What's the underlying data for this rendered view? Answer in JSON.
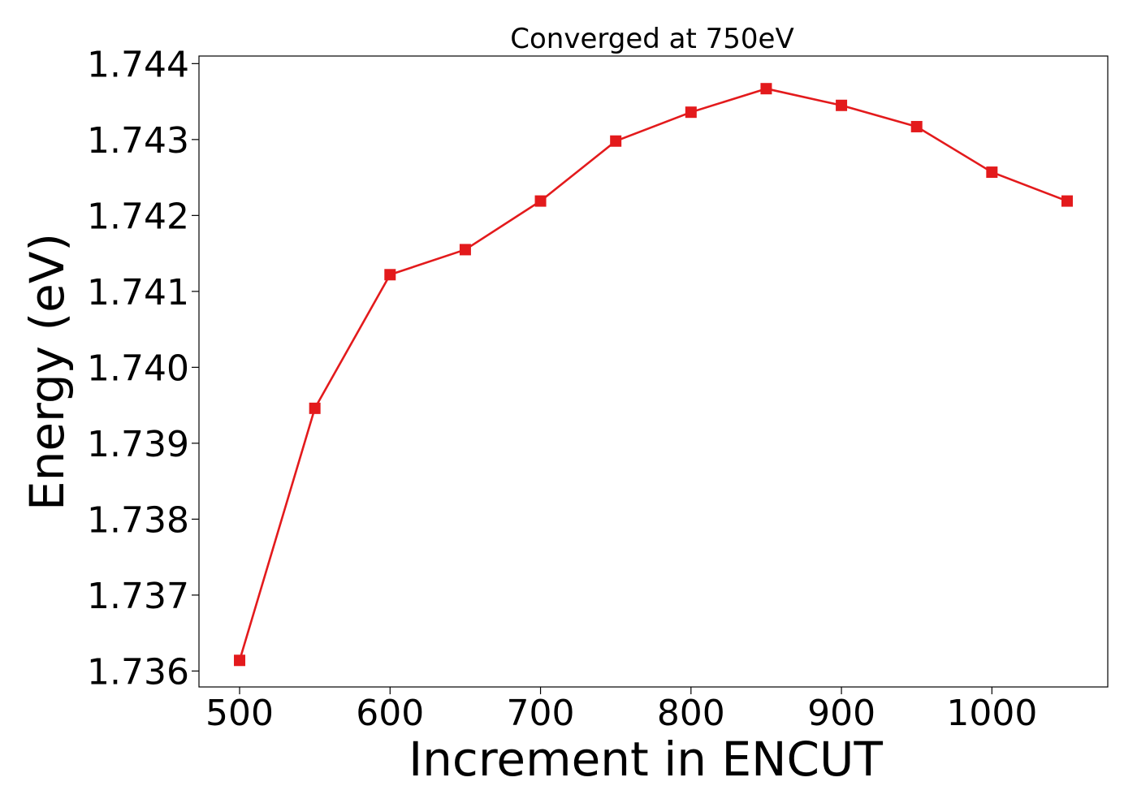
{
  "chart_data": {
    "type": "line",
    "title": "Converged at 750eV",
    "xlabel": "Increment in ENCUT",
    "ylabel": "Energy (eV)",
    "x": [
      500,
      550,
      600,
      650,
      700,
      750,
      800,
      850,
      900,
      950,
      1000,
      1050
    ],
    "series": [
      {
        "values": [
          1.73614,
          1.73946,
          1.74122,
          1.74155,
          1.74219,
          1.74298,
          1.74336,
          1.74367,
          1.74345,
          1.74317,
          1.74257,
          1.74219
        ],
        "color": "#e31a1c",
        "marker": "square"
      }
    ],
    "xlim": [
      473,
      1077
    ],
    "ylim": [
      1.73579,
      1.7441
    ],
    "xticks": [
      500,
      600,
      700,
      800,
      900,
      1000
    ],
    "xtick_labels": [
      "500",
      "600",
      "700",
      "800",
      "900",
      "1000"
    ],
    "yticks": [
      1.736,
      1.737,
      1.738,
      1.739,
      1.74,
      1.741,
      1.742,
      1.743,
      1.744
    ],
    "ytick_labels": [
      "1.736",
      "1.737",
      "1.738",
      "1.739",
      "1.740",
      "1.741",
      "1.742",
      "1.743",
      "1.744"
    ],
    "grid": false,
    "legend": "none"
  }
}
